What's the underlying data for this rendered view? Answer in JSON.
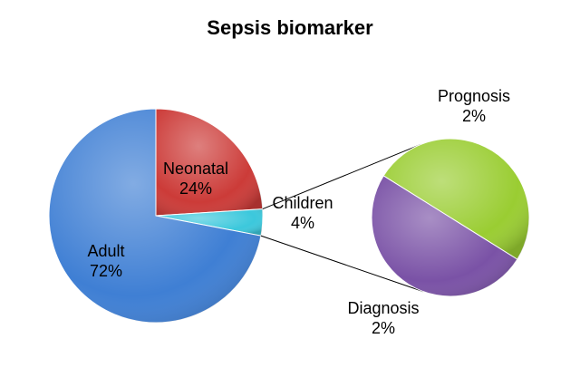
{
  "chart_data": {
    "type": "pie",
    "title": "Sepsis biomarker",
    "main_pie": {
      "slices": [
        {
          "label": "Neonatal",
          "value": 24,
          "value_label": "24%",
          "color": "#cc3b38"
        },
        {
          "label": "Children",
          "value": 4,
          "value_label": "4%",
          "color": "#3cc8dc"
        },
        {
          "label": "Adult",
          "value": 72,
          "value_label": "72%",
          "color": "#3f7fd4"
        }
      ]
    },
    "sub_pie": {
      "parent": "Children",
      "slices": [
        {
          "label": "Diagnosis",
          "value": 2,
          "value_label": "2%",
          "color": "#9acd32"
        },
        {
          "label": "Prognosis",
          "value": 2,
          "value_label": "2%",
          "color": "#7a52a6"
        }
      ]
    },
    "legend": "none",
    "grid": false
  }
}
